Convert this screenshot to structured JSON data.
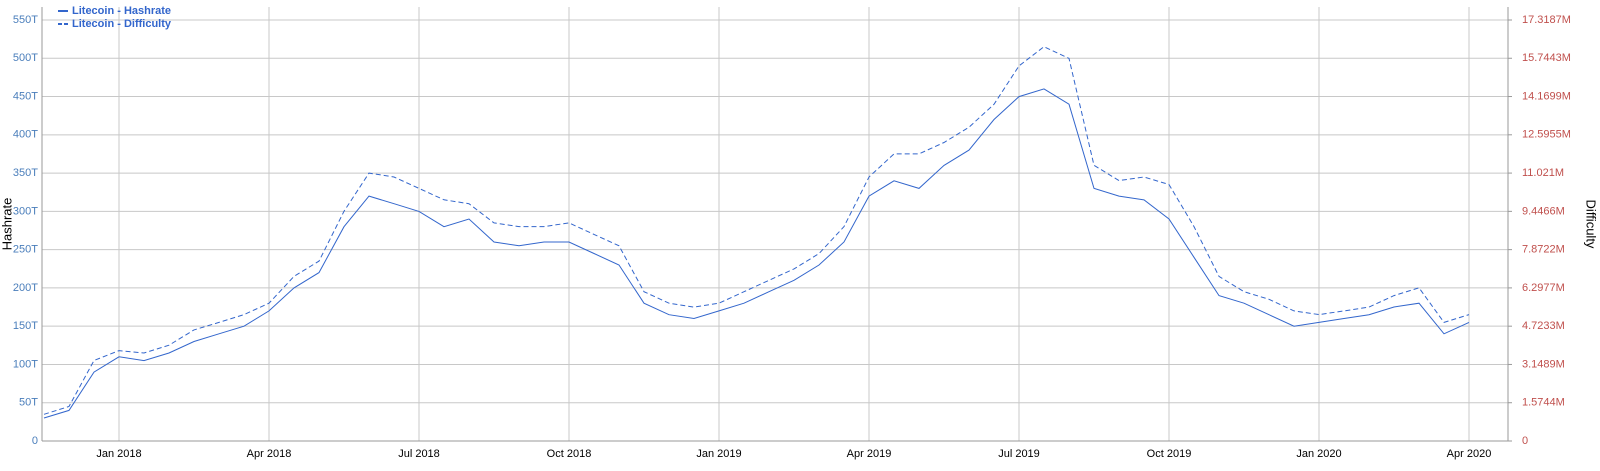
{
  "chart_data": {
    "type": "line",
    "y_label": "Hashrate",
    "y2_label": "Difficulty",
    "grid": true,
    "legend": "top-left",
    "categories": [
      null,
      null,
      null,
      "Jan 2018",
      null,
      null,
      null,
      null,
      null,
      "Apr 2018",
      null,
      null,
      null,
      null,
      null,
      "Jul 2018",
      null,
      null,
      null,
      null,
      null,
      "Oct 2018",
      null,
      null,
      null,
      null,
      null,
      "Jan 2019",
      null,
      null,
      null,
      null,
      null,
      "Apr 2019",
      null,
      null,
      null,
      null,
      null,
      "Jul 2019",
      null,
      null,
      null,
      null,
      null,
      "Oct 2019",
      null,
      null,
      null,
      null,
      null,
      "Jan 2020",
      null,
      null,
      null,
      null,
      null,
      "Apr 2020"
    ],
    "ylim": [
      0,
      567
    ],
    "yticks": [
      0,
      {
        "value": 50,
        "label": "50T"
      },
      {
        "value": 100,
        "label": "100T"
      },
      {
        "value": 150,
        "label": "150T"
      },
      {
        "value": 200,
        "label": "200T"
      },
      {
        "value": 250,
        "label": "250T"
      },
      {
        "value": 300,
        "label": "300T"
      },
      {
        "value": 350,
        "label": "350T"
      },
      {
        "value": 400,
        "label": "400T"
      },
      {
        "value": 450,
        "label": "450T"
      },
      {
        "value": 500,
        "label": "500T"
      },
      {
        "value": 550,
        "label": "550T"
      }
    ],
    "y2lim": [
      0,
      17.853
    ],
    "y2ticks": [
      0,
      {
        "value": 1.5744,
        "label": "1.5744M"
      },
      {
        "value": 3.1489,
        "label": "3.1489M"
      },
      {
        "value": 4.7233,
        "label": "4.7233M"
      },
      {
        "value": 6.2977,
        "label": "6.2977M"
      },
      {
        "value": 7.8722,
        "label": "7.8722M"
      },
      {
        "value": 9.4466,
        "label": "9.4466M"
      },
      {
        "value": 11.021,
        "label": "11.021M"
      },
      {
        "value": 12.5955,
        "label": "12.5955M"
      },
      {
        "value": 14.1699,
        "label": "14.1699M"
      },
      {
        "value": 15.7443,
        "label": "15.7443M"
      },
      {
        "value": 17.3187,
        "label": "17.3187M"
      }
    ],
    "y_tick_color": "#4a7ebb",
    "y2_tick_color": "#c0504d",
    "series": [
      {
        "name": "Litecoin - Hashrate",
        "color": "#3366cc",
        "dash": false,
        "values": [
          30,
          40,
          90,
          110,
          105,
          115,
          130,
          140,
          150,
          170,
          200,
          220,
          280,
          320,
          310,
          300,
          280,
          290,
          260,
          255,
          260,
          260,
          245,
          230,
          180,
          165,
          160,
          170,
          180,
          195,
          210,
          230,
          260,
          320,
          340,
          330,
          360,
          380,
          420,
          450,
          460,
          440,
          330,
          320,
          315,
          290,
          240,
          190,
          180,
          165,
          150,
          155,
          160,
          165,
          175,
          180,
          140,
          155
        ]
      },
      {
        "name": "Litecoin - Difficulty",
        "color": "#3366cc",
        "dash": true,
        "axis": "y2",
        "values": [
          1.1,
          1.42,
          3.31,
          3.72,
          3.62,
          3.94,
          4.57,
          4.88,
          5.2,
          5.67,
          6.77,
          7.4,
          9.45,
          11.02,
          10.86,
          10.39,
          9.92,
          9.76,
          8.97,
          8.82,
          8.82,
          8.97,
          8.5,
          8.03,
          6.14,
          5.67,
          5.51,
          5.67,
          6.14,
          6.61,
          7.08,
          7.71,
          8.82,
          10.86,
          11.81,
          11.81,
          12.28,
          12.91,
          13.85,
          15.43,
          16.22,
          15.74,
          11.34,
          10.71,
          10.86,
          10.55,
          8.82,
          6.77,
          6.14,
          5.83,
          5.35,
          5.2,
          5.35,
          5.51,
          5.98,
          6.3,
          4.88,
          5.2
        ]
      }
    ]
  }
}
